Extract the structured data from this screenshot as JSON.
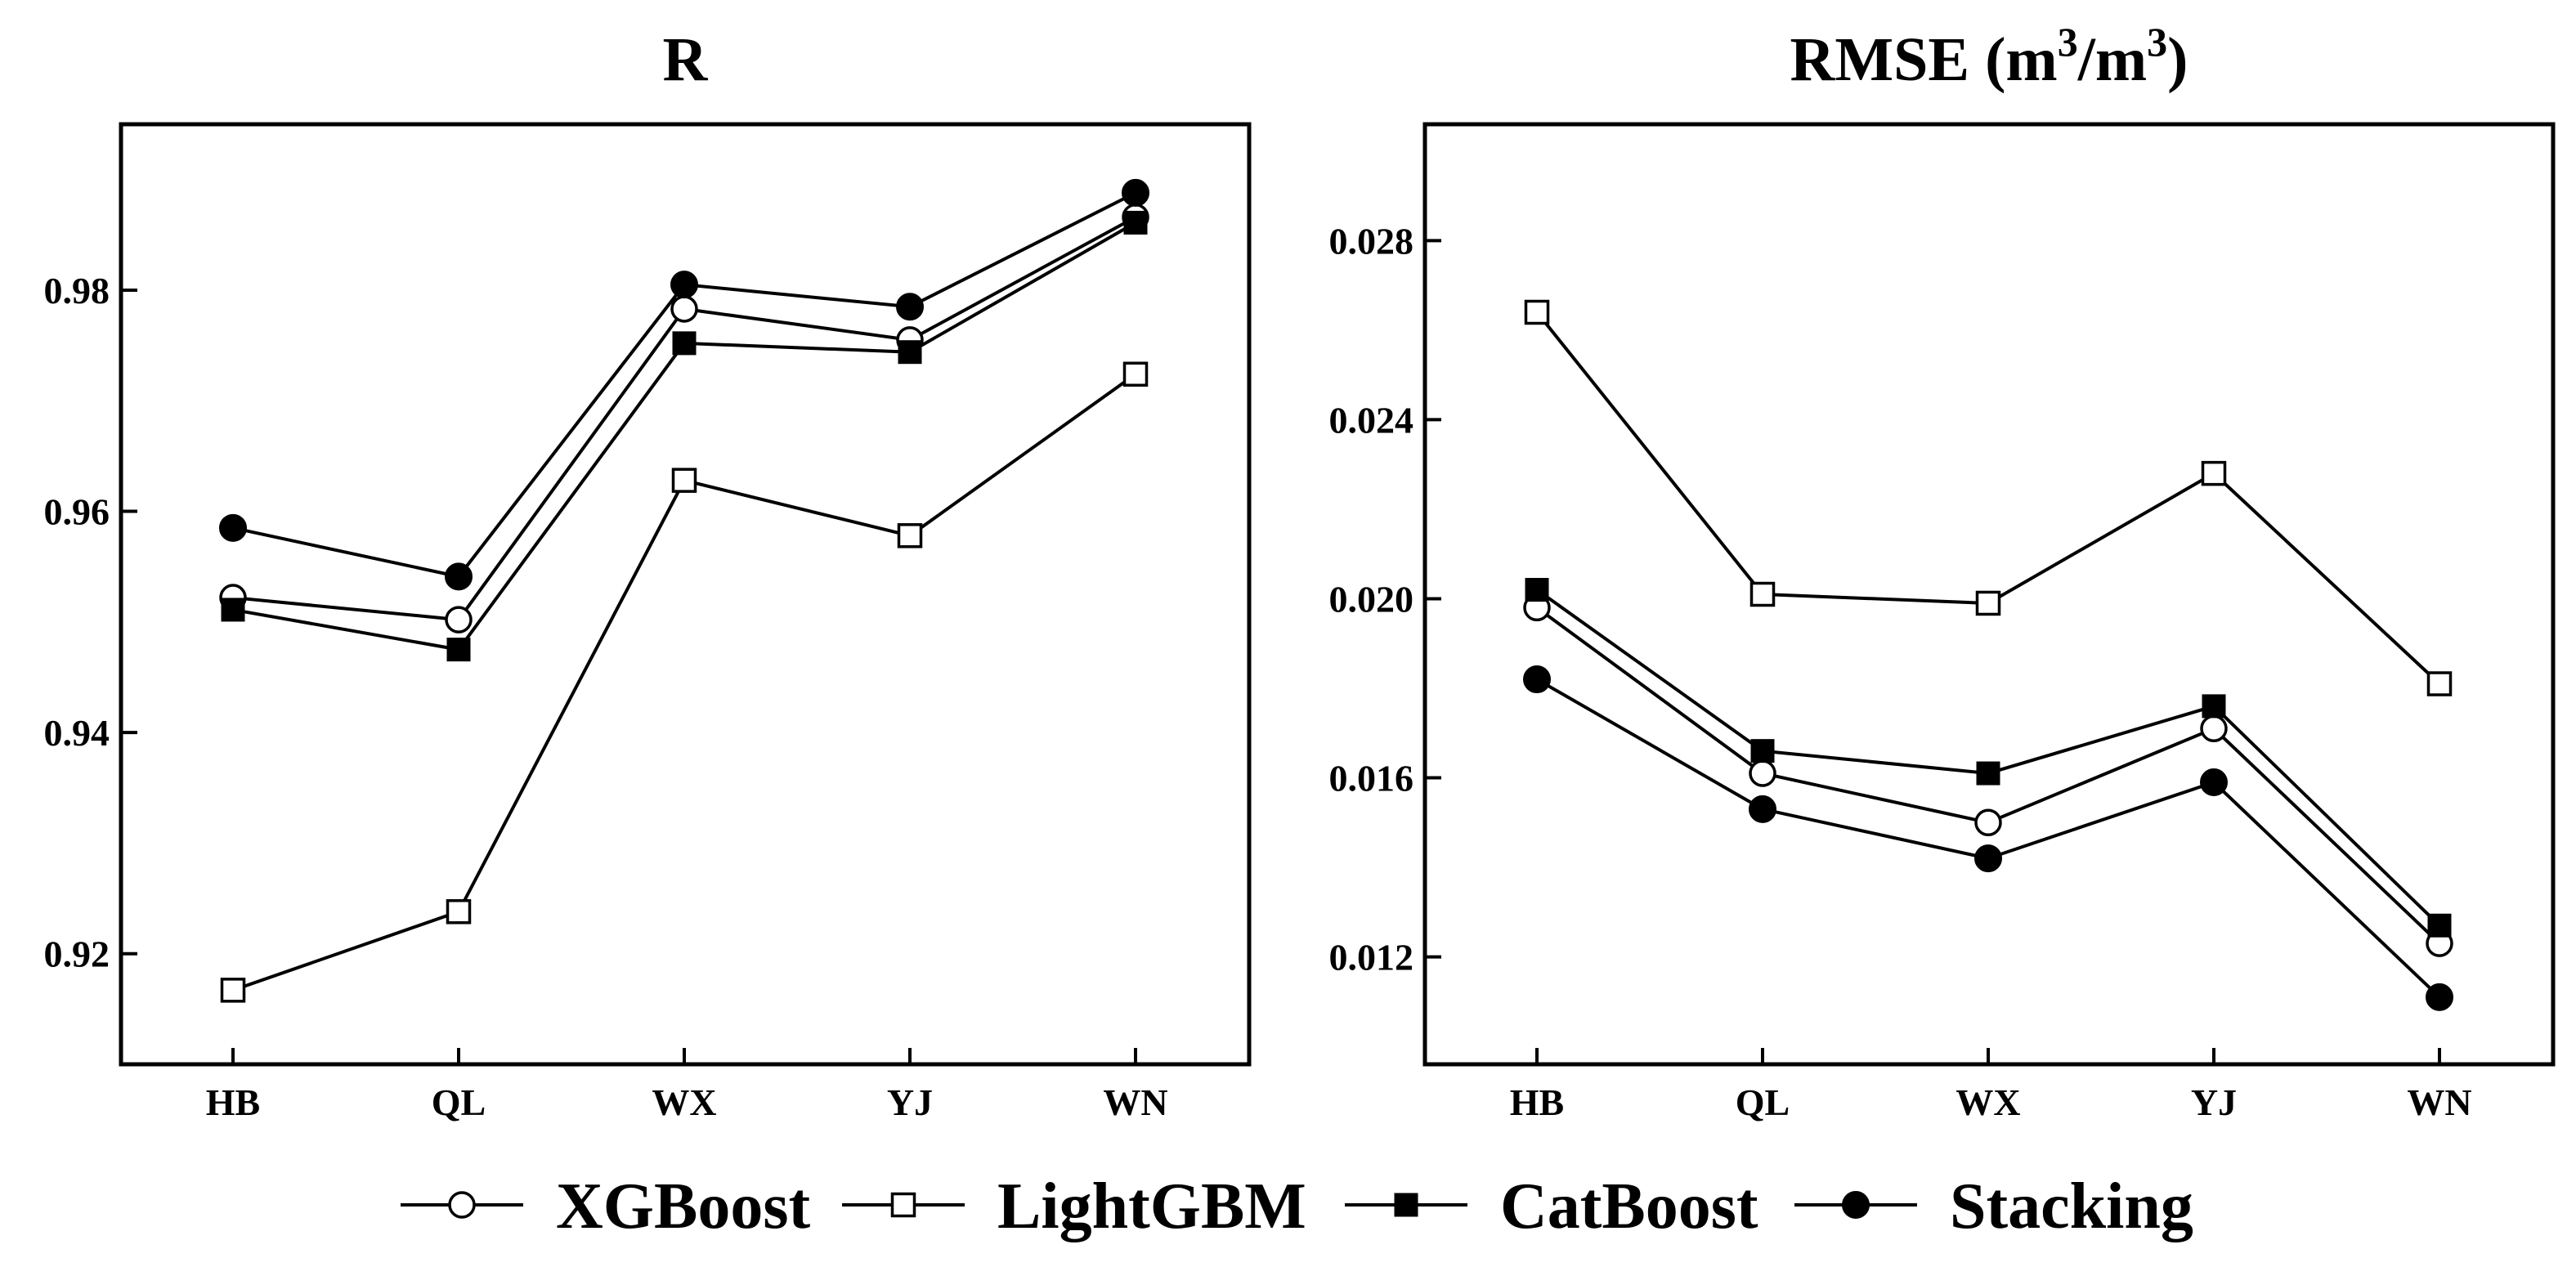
{
  "chart_data": [
    {
      "type": "line",
      "title": "R",
      "title_super": [],
      "categories": [
        "HB",
        "QL",
        "WX",
        "YJ",
        "WN"
      ],
      "ylim": [
        0.91,
        0.995
      ],
      "yticks": [
        0.92,
        0.94,
        0.96,
        0.98
      ],
      "ytick_labels": [
        "0.92",
        "0.94",
        "0.96",
        "0.98"
      ],
      "series": [
        {
          "name": "XGBoost",
          "marker": "open-circle",
          "values": [
            0.9522,
            0.9502,
            0.9783,
            0.9755,
            0.9866
          ]
        },
        {
          "name": "LightGBM",
          "marker": "open-square",
          "values": [
            0.9167,
            0.9238,
            0.9628,
            0.9578,
            0.9724
          ]
        },
        {
          "name": "CatBoost",
          "marker": "filled-square",
          "values": [
            0.9511,
            0.9475,
            0.9752,
            0.9744,
            0.9861
          ]
        },
        {
          "name": "Stacking",
          "marker": "filled-circle",
          "values": [
            0.9585,
            0.9541,
            0.9805,
            0.9785,
            0.9888
          ]
        }
      ]
    },
    {
      "type": "line",
      "title": "RMSE (m3/m3)",
      "title_parts": [
        "RMSE (m",
        "3",
        "/m",
        "3",
        ")"
      ],
      "categories": [
        "HB",
        "QL",
        "WX",
        "YJ",
        "WN"
      ],
      "ylim": [
        0.0096,
        0.0306
      ],
      "yticks": [
        0.012,
        0.016,
        0.02,
        0.024,
        0.028
      ],
      "ytick_labels": [
        "0.012",
        "0.016",
        "0.020",
        "0.024",
        "0.028"
      ],
      "series": [
        {
          "name": "XGBoost",
          "marker": "open-circle",
          "values": [
            0.0198,
            0.0161,
            0.015,
            0.0171,
            0.0123
          ]
        },
        {
          "name": "LightGBM",
          "marker": "open-square",
          "values": [
            0.0264,
            0.0201,
            0.0199,
            0.0228,
            0.0181
          ]
        },
        {
          "name": "CatBoost",
          "marker": "filled-square",
          "values": [
            0.0202,
            0.0166,
            0.0161,
            0.0176,
            0.0127
          ]
        },
        {
          "name": "Stacking",
          "marker": "filled-circle",
          "values": [
            0.0182,
            0.0153,
            0.0142,
            0.0159,
            0.0111
          ]
        }
      ]
    }
  ],
  "legend": {
    "items": [
      {
        "label": "XGBoost",
        "marker": "open-circle"
      },
      {
        "label": "LightGBM",
        "marker": "open-square"
      },
      {
        "label": "CatBoost",
        "marker": "filled-square"
      },
      {
        "label": "Stacking",
        "marker": "filled-circle"
      }
    ]
  }
}
